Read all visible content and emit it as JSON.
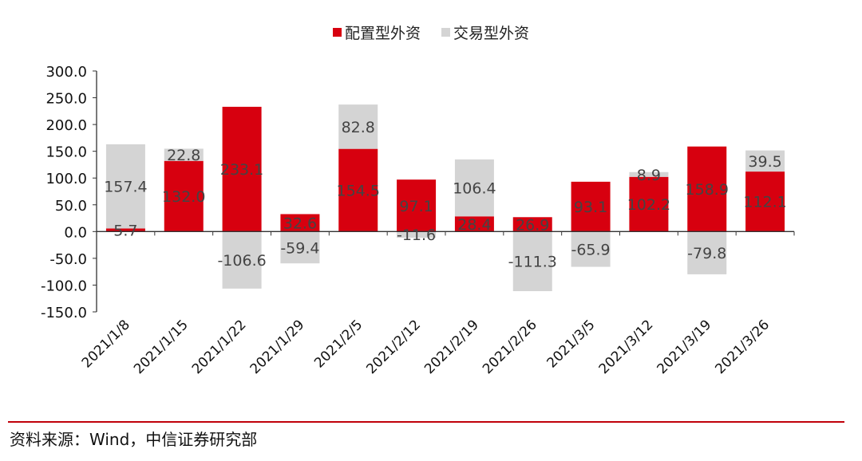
{
  "chart_data": {
    "type": "bar",
    "stacked": true,
    "categories": [
      "2021/1/8",
      "2021/1/15",
      "2021/1/22",
      "2021/1/29",
      "2021/2/5",
      "2021/2/12",
      "2021/2/19",
      "2021/2/26",
      "2021/3/5",
      "2021/3/12",
      "2021/3/19",
      "2021/3/26"
    ],
    "series": [
      {
        "name": "配置型外资",
        "color": "#d7000f",
        "values": [
          5.7,
          132.0,
          233.1,
          32.6,
          154.5,
          97.1,
          28.4,
          26.9,
          93.1,
          102.2,
          158.9,
          112.1
        ],
        "labels": [
          "5.7",
          "132.0",
          "233.1",
          "32.6",
          "154.5",
          "97.1",
          "28.4",
          "26.9",
          "93.1",
          "102.2",
          "158.9",
          "112.1"
        ]
      },
      {
        "name": "交易型外资",
        "color": "#d4d4d4",
        "values": [
          157.4,
          22.8,
          -106.6,
          -59.4,
          82.8,
          -11.6,
          106.4,
          -111.3,
          -65.9,
          8.9,
          -79.8,
          39.5
        ],
        "labels": [
          "157.4",
          "22.8",
          "-106.6",
          "-59.4",
          "82.8",
          "-11.6",
          "106.4",
          "-111.3",
          "-65.9",
          "8.9",
          "-79.8",
          "39.5"
        ]
      }
    ],
    "ylim": [
      -150,
      300
    ],
    "yticks": [
      300,
      250,
      200,
      150,
      100,
      50,
      0,
      -50,
      -100,
      -150
    ],
    "ytick_labels": [
      "300.0",
      "250.0",
      "200.0",
      "150.0",
      "100.0",
      "50.0",
      "0.0",
      "-50.0",
      "-100.0",
      "-150.0"
    ],
    "legend_position": "top-center",
    "grid": false
  },
  "legend": [
    {
      "label": "配置型外资",
      "color": "#d7000f"
    },
    {
      "label": "交易型外资",
      "color": "#d4d4d4"
    }
  ],
  "source": "资料来源：Wind，中信证券研究部"
}
